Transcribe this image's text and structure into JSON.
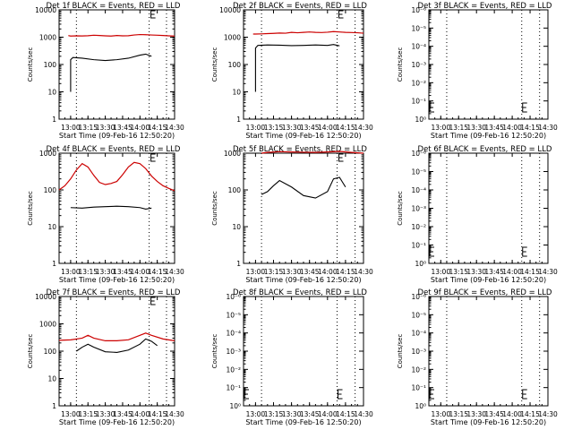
{
  "figure": {
    "xlabel": "Start Time (09-Feb-16 12:50:20)",
    "ylabel": "Counts/sec",
    "x_ticks": [
      "13:00",
      "13:15",
      "13:30",
      "13:45",
      "14:00",
      "14:15",
      "14:30"
    ],
    "y_ticks_full": [
      "1",
      "10",
      "100",
      "1000",
      "10000"
    ],
    "y_ticks_empty": [
      "10⁰",
      "10⁻¹",
      "10⁻²",
      "10⁻³",
      "10⁻⁴",
      "10⁻⁵",
      "10⁻⁶"
    ],
    "vline_times": [
      "13:05",
      "14:08",
      "14:23"
    ],
    "colors": {
      "events": "#000000",
      "lld": "#cc0000"
    }
  },
  "chart_data": [
    {
      "title": "Det 1f BLACK = Events, RED = LLD",
      "type": "line",
      "yscale": "log",
      "ylim": [
        1,
        10000
      ],
      "x": [
        "12:58",
        "13:00",
        "13:05",
        "13:10",
        "13:15",
        "13:20",
        "13:25",
        "13:30",
        "13:35",
        "13:40",
        "13:45",
        "13:50",
        "13:55",
        "14:00",
        "14:05",
        "14:10",
        "14:15",
        "14:20",
        "14:25",
        "14:30"
      ],
      "series": [
        {
          "name": "BLACK = Events",
          "values": [
            null,
            null,
            null,
            null,
            null,
            null,
            null,
            null,
            null,
            null,
            null,
            null,
            null,
            null,
            null,
            null,
            null,
            null,
            null,
            null
          ]
        },
        {
          "name": "RED = LLD",
          "values": [
            1150,
            1100,
            1120,
            1110,
            1130,
            1180,
            1150,
            1120,
            1100,
            1150,
            1120,
            1130,
            1200,
            1250,
            1230,
            1200,
            1180,
            1150,
            1120,
            1100
          ]
        }
      ],
      "events_points": {
        "x": [
          "13:00",
          "13:00",
          "13:02",
          "13:10",
          "13:20",
          "13:30",
          "13:40",
          "13:50",
          "14:00",
          "14:05",
          "14:10"
        ],
        "y": [
          10,
          150,
          180,
          170,
          150,
          140,
          150,
          170,
          220,
          240,
          200
        ]
      }
    },
    {
      "title": "Det 2f BLACK = Events, RED = LLD",
      "type": "line",
      "yscale": "log",
      "ylim": [
        1,
        10000
      ],
      "x": [
        "12:58",
        "13:00",
        "13:05",
        "13:10",
        "13:15",
        "13:20",
        "13:25",
        "13:30",
        "13:35",
        "13:40",
        "13:45",
        "13:50",
        "13:55",
        "14:00",
        "14:05",
        "14:10",
        "14:15",
        "14:20",
        "14:25",
        "14:30"
      ],
      "series": [
        {
          "name": "RED = LLD",
          "values": [
            1300,
            1300,
            1320,
            1350,
            1380,
            1420,
            1400,
            1500,
            1450,
            1500,
            1550,
            1500,
            1480,
            1520,
            1600,
            1550,
            1500,
            1480,
            1450,
            1400
          ]
        }
      ],
      "events_points": {
        "x": [
          "13:00",
          "13:00",
          "13:02",
          "13:10",
          "13:20",
          "13:30",
          "13:40",
          "13:50",
          "14:00",
          "14:05",
          "14:10"
        ],
        "y": [
          10,
          400,
          500,
          520,
          510,
          490,
          500,
          520,
          500,
          540,
          480
        ]
      }
    },
    {
      "title": "Det 3f BLACK = Events, RED = LLD",
      "type": "line",
      "yscale": "log",
      "empty": true
    },
    {
      "title": "Det 4f BLACK = Events, RED = LLD",
      "type": "line",
      "yscale": "log",
      "ylim": [
        1,
        1000
      ],
      "x": [
        "12:50",
        "12:55",
        "13:00",
        "13:05",
        "13:10",
        "13:15",
        "13:20",
        "13:25",
        "13:30",
        "13:35",
        "13:40",
        "13:45",
        "13:50",
        "13:55",
        "14:00",
        "14:05",
        "14:10",
        "14:15",
        "14:20",
        "14:25",
        "14:30"
      ],
      "series": [
        {
          "name": "RED = LLD",
          "values": [
            100,
            130,
            200,
            350,
            520,
            420,
            250,
            160,
            140,
            150,
            170,
            260,
            420,
            560,
            520,
            380,
            240,
            170,
            130,
            110,
            95
          ]
        }
      ],
      "events_points": {
        "x": [
          "13:00",
          "13:10",
          "13:20",
          "13:30",
          "13:40",
          "13:50",
          "14:00",
          "14:05",
          "14:10"
        ],
        "y": [
          33,
          32,
          34,
          35,
          36,
          35,
          33,
          30,
          32
        ]
      }
    },
    {
      "title": "Det 5f BLACK = Events, RED = LLD",
      "type": "line",
      "yscale": "log",
      "ylim": [
        1,
        1000
      ],
      "x": [
        "13:05",
        "13:10",
        "13:20",
        "13:30",
        "13:40",
        "13:50",
        "14:00",
        "14:10",
        "14:20",
        "14:30"
      ],
      "series": [
        {
          "name": "RED = LLD",
          "values": [
            1000,
            1050,
            1100,
            1080,
            1060,
            1050,
            1080,
            1120,
            1050,
            1000
          ]
        }
      ],
      "events_points": {
        "x": [
          "13:05",
          "13:10",
          "13:15",
          "13:20",
          "13:30",
          "13:40",
          "13:50",
          "14:00",
          "14:05",
          "14:10",
          "14:15"
        ],
        "y": [
          75,
          90,
          130,
          180,
          120,
          70,
          60,
          90,
          200,
          220,
          120
        ]
      }
    },
    {
      "title": "Det 6f BLACK = Events, RED = LLD",
      "type": "line",
      "yscale": "log",
      "empty": true
    },
    {
      "title": "Det 7f BLACK = Events, RED = LLD",
      "type": "line",
      "yscale": "log",
      "ylim": [
        1,
        10000
      ],
      "x": [
        "12:50",
        "13:00",
        "13:10",
        "13:15",
        "13:20",
        "13:30",
        "13:40",
        "13:50",
        "14:00",
        "14:05",
        "14:10",
        "14:20",
        "14:30"
      ],
      "series": [
        {
          "name": "RED = LLD",
          "values": [
            250,
            260,
            300,
            380,
            300,
            240,
            240,
            260,
            380,
            460,
            380,
            280,
            240
          ]
        }
      ],
      "events_points": {
        "x": [
          "13:05",
          "13:10",
          "13:15",
          "13:20",
          "13:30",
          "13:40",
          "13:50",
          "14:00",
          "14:05",
          "14:10",
          "14:15"
        ],
        "y": [
          100,
          140,
          180,
          140,
          95,
          90,
          110,
          180,
          280,
          230,
          160
        ]
      }
    },
    {
      "title": "Det 8f BLACK = Events, RED = LLD",
      "type": "line",
      "yscale": "log",
      "empty": true
    },
    {
      "title": "Det 9f BLACK = Events, RED = LLD",
      "type": "line",
      "yscale": "log",
      "empty": true
    }
  ]
}
